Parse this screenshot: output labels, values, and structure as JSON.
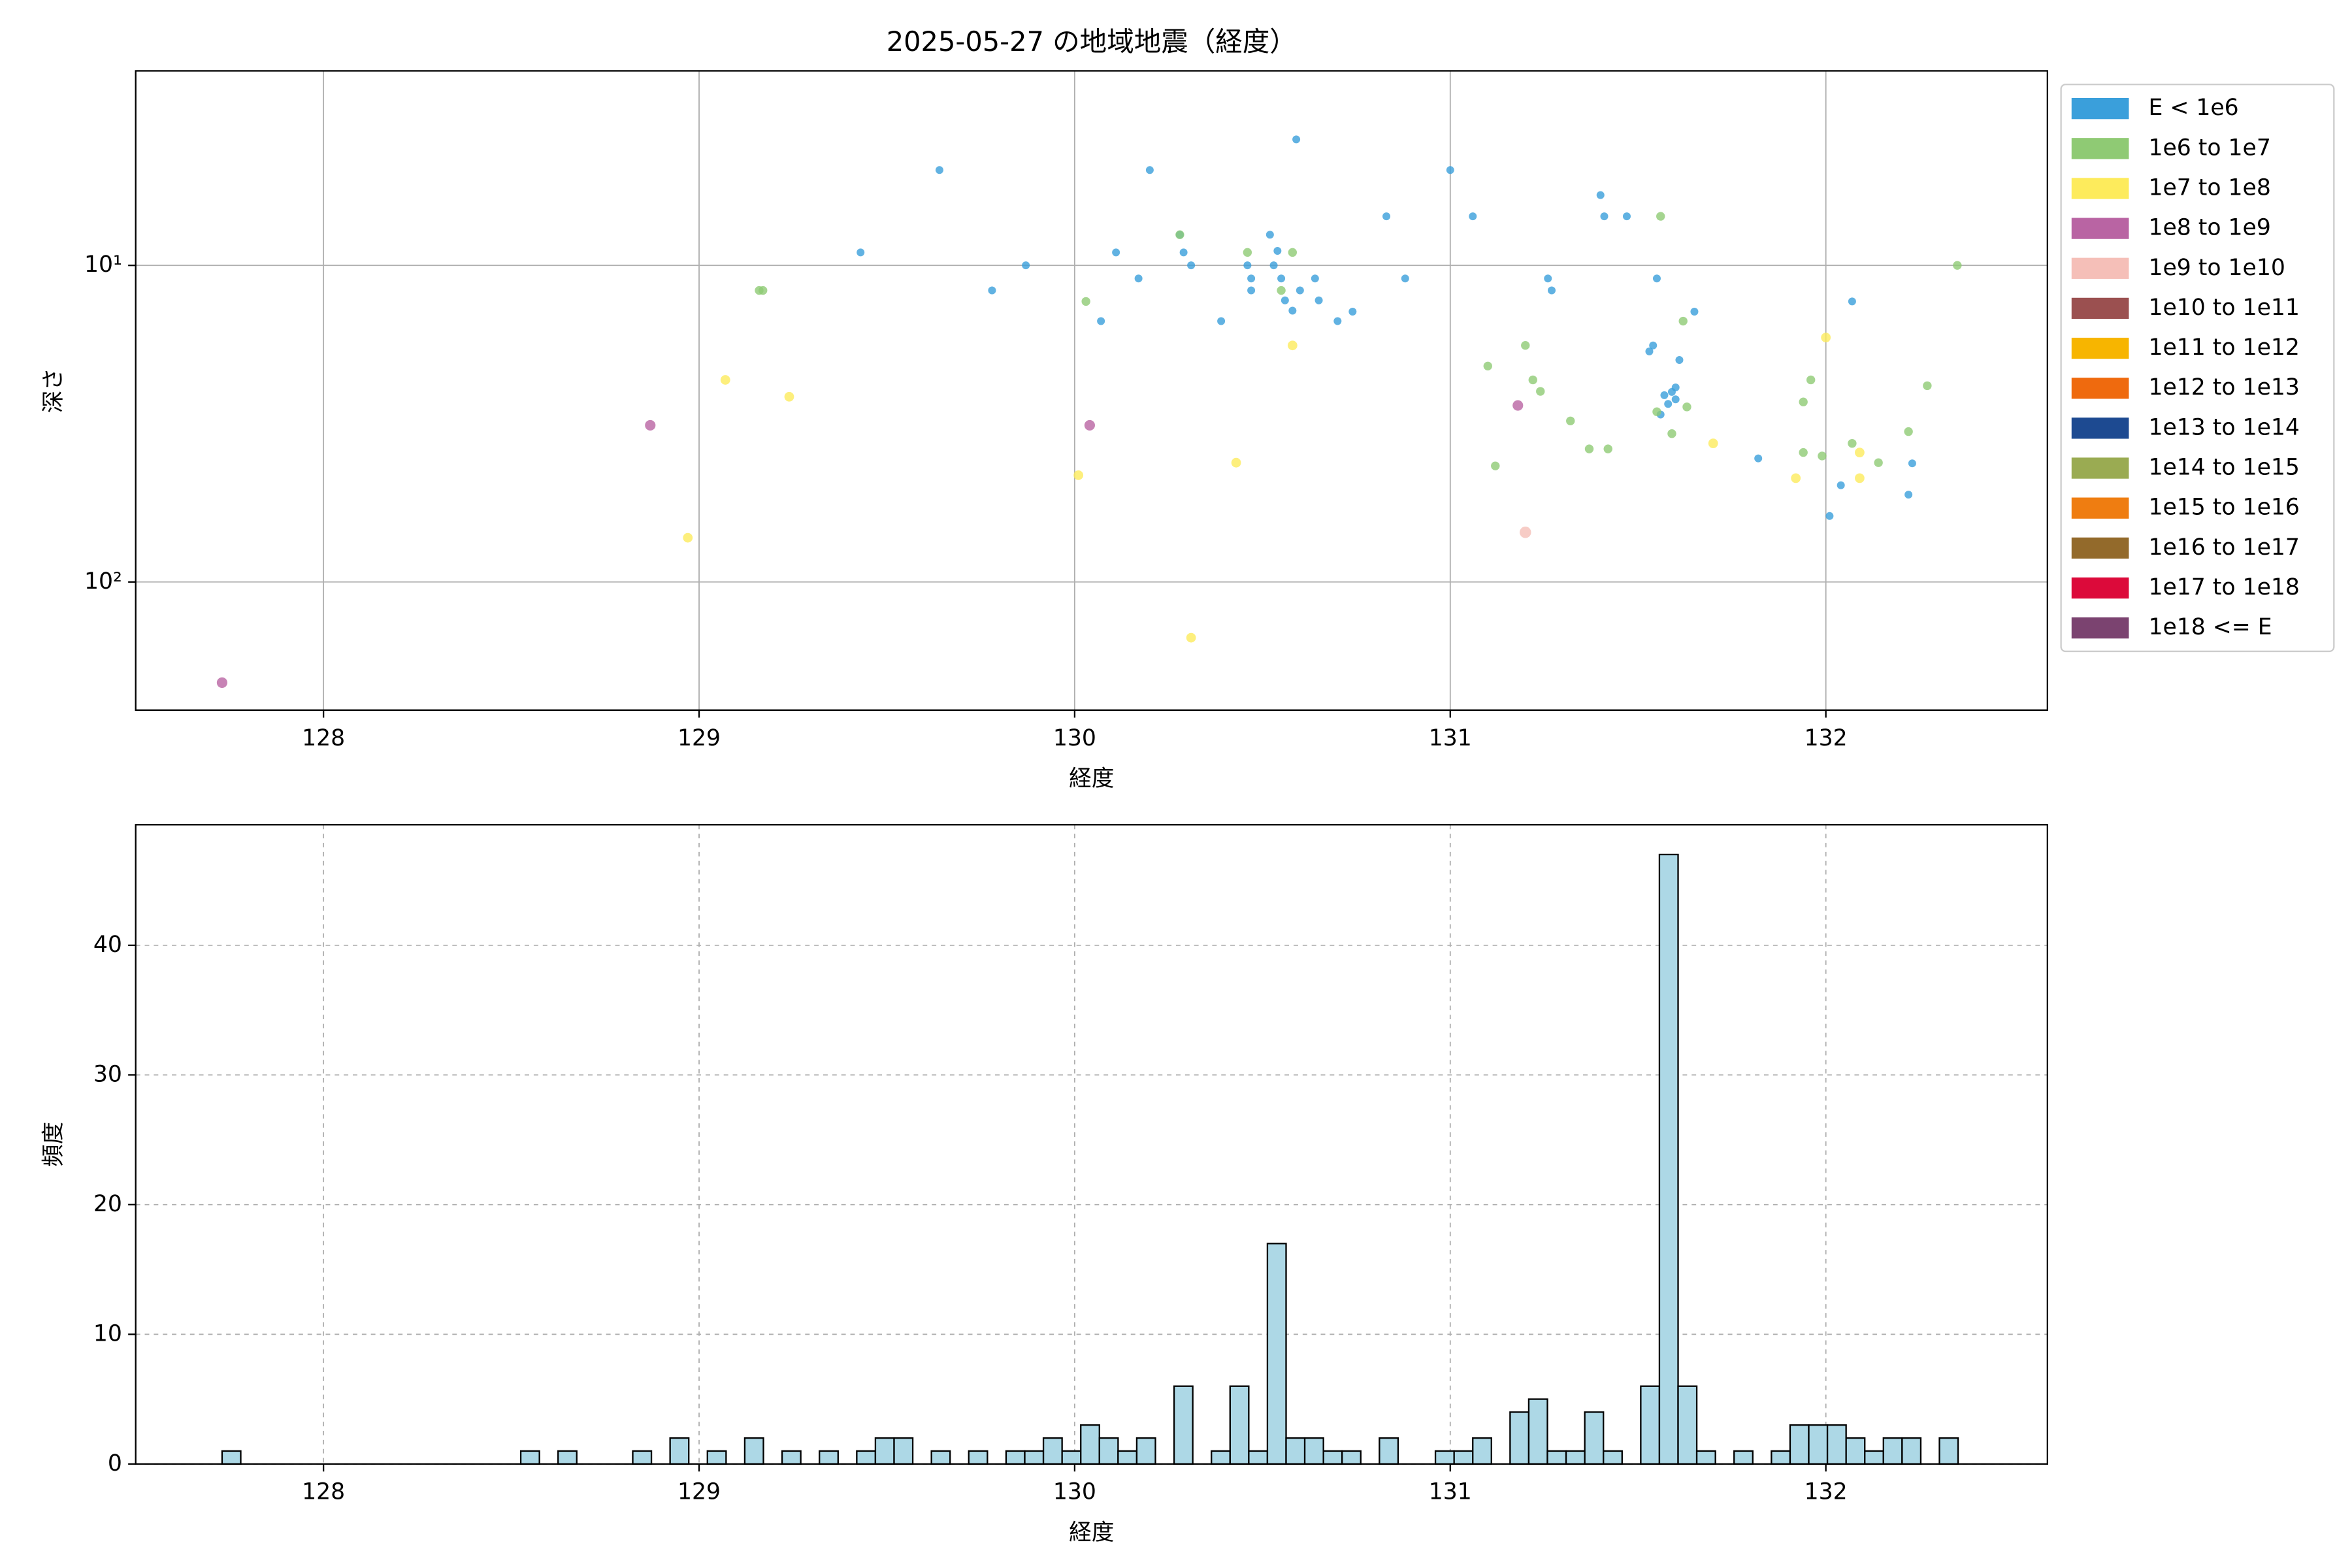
{
  "chart_data": [
    {
      "type": "scatter",
      "title": "2025-05-27 の地域地震（経度）",
      "x_label": "経度",
      "y_label": "深さ",
      "xlim": [
        127.5,
        132.59
      ],
      "xticks": [
        128,
        129,
        130,
        131,
        132
      ],
      "ylim": [
        254,
        2.43
      ],
      "yscale": "log",
      "yticks": [
        {
          "value": 10,
          "label": "10¹"
        },
        {
          "value": 100,
          "label": "10²"
        }
      ],
      "grid": true,
      "legend": "outside right",
      "series": [
        {
          "name": "E < 1e6",
          "color": "#3a9fdb",
          "x": [
            129.64,
            129.43,
            129.78,
            129.87,
            130.11,
            130.17,
            130.2,
            130.29,
            130.31,
            130.28,
            130.39,
            130.46,
            130.47,
            130.47,
            130.52,
            130.53,
            130.54,
            130.55,
            130.56,
            130.58,
            130.59,
            130.6,
            130.64,
            130.65,
            130.7,
            130.74,
            130.83,
            130.88,
            130.07,
            131,
            131.06,
            131.26,
            131.27,
            131.4,
            131.41,
            131.47,
            131.55,
            131.53,
            131.54,
            131.61,
            131.59,
            131.6,
            131.57,
            131.6,
            131.58,
            131.56,
            131.65,
            131.82,
            132.07,
            132.04,
            132.01,
            132.22,
            132.23
          ],
          "values": [
            5,
            9.1,
            12,
            10,
            9.1,
            11,
            5,
            9.1,
            10,
            8,
            15,
            10,
            11,
            12,
            8,
            10,
            9,
            11,
            12.9,
            13.9,
            4,
            12,
            11,
            12.9,
            15,
            14,
            7,
            11,
            15,
            5,
            7,
            11,
            12,
            6,
            7,
            7,
            11,
            18.7,
            17.9,
            19.9,
            25.1,
            26.5,
            25.7,
            24.3,
            27.4,
            29.6,
            14,
            40.7,
            13,
            49.5,
            61.9,
            53,
            42.2
          ]
        },
        {
          "name": "1e6 to 1e7",
          "color": "#8fca74",
          "x": [
            129.16,
            129.17,
            130.03,
            130.28,
            130.46,
            130.58,
            130.55,
            131.1,
            131.2,
            131.22,
            131.24,
            131.32,
            131.37,
            131.42,
            131.12,
            131.56,
            131.62,
            131.55,
            131.59,
            131.63,
            131.94,
            131.96,
            131.94,
            131.99,
            132.07,
            132.14,
            132.22,
            132.27,
            132.35
          ],
          "values": [
            12,
            12,
            13,
            8,
            9.1,
            9.1,
            12,
            20.8,
            17.9,
            23,
            25,
            31,
            38,
            38,
            43,
            7,
            15,
            29,
            34,
            28,
            27,
            23,
            39,
            40,
            36.5,
            42,
            33.5,
            24,
            10
          ]
        },
        {
          "name": "1e7 to 1e8",
          "color": "#fdeb5c",
          "x": [
            129.07,
            129.24,
            128.97,
            130.01,
            130.43,
            130.58,
            130.31,
            131.7,
            132,
            132.09,
            131.92,
            132.09
          ],
          "values": [
            23,
            26,
            72.5,
            46,
            42,
            17.9,
            150,
            36.5,
            16.9,
            39,
            47,
            47
          ]
        },
        {
          "name": "1e8 to 1e9",
          "color": "#b964a3",
          "x": [
            127.73,
            128.87,
            130.04,
            131.18
          ],
          "values": [
            208,
            32,
            32,
            27.7
          ]
        },
        {
          "name": "1e9 to 1e10",
          "color": "#f5bfb8",
          "x": [
            131.2
          ],
          "values": [
            69.7
          ]
        },
        {
          "name": "1e10 to 1e11",
          "color": "#9b5050",
          "x": [],
          "values": []
        },
        {
          "name": "1e11 to 1e12",
          "color": "#f7b500",
          "x": [],
          "values": []
        },
        {
          "name": "1e12 to 1e13",
          "color": "#ef6a0e",
          "x": [],
          "values": []
        },
        {
          "name": "1e13 to 1e14",
          "color": "#1d4a91",
          "x": [],
          "values": []
        },
        {
          "name": "1e14 to 1e15",
          "color": "#9aab52",
          "x": [],
          "values": []
        },
        {
          "name": "1e15 to 1e16",
          "color": "#ef7d11",
          "x": [],
          "values": []
        },
        {
          "name": "1e16 to 1e17",
          "color": "#936a2b",
          "x": [],
          "values": []
        },
        {
          "name": "1e17 to 1e18",
          "color": "#dc0a3a",
          "x": [],
          "values": []
        },
        {
          "name": "1e18 <= E",
          "color": "#7b4370",
          "x": [],
          "values": []
        }
      ]
    },
    {
      "type": "histogram",
      "x_label": "経度",
      "y_label": "頻度",
      "color": "#add8e6",
      "edgecolor": "#000000",
      "xlim": [
        127.5,
        132.59
      ],
      "xticks": [
        128,
        129,
        130,
        131,
        132
      ],
      "ylim": [
        0,
        49.3
      ],
      "yticks": [
        0,
        10,
        20,
        30,
        40
      ],
      "grid": true,
      "grid_linestyle": "dashed",
      "bins": [
        127.73,
        127.7797,
        127.8294,
        127.8791,
        127.9288,
        127.9785,
        128.0282,
        128.0779,
        128.1276,
        128.1773,
        128.227,
        128.2767,
        128.3264,
        128.3761,
        128.4258,
        128.4755,
        128.5252,
        128.5749,
        128.6246,
        128.6743,
        128.724,
        128.7737,
        128.8234,
        128.8731,
        128.9228,
        128.9725,
        129.0222,
        129.0719,
        129.1216,
        129.1713,
        129.221,
        129.2707,
        129.3204,
        129.3701,
        129.4198,
        129.4695,
        129.5192,
        129.5689,
        129.6186,
        129.6683,
        129.718,
        129.7677,
        129.8174,
        129.8671,
        129.9168,
        129.9665,
        130.0162,
        130.0659,
        130.1156,
        130.1653,
        130.215,
        130.2647,
        130.3144,
        130.3641,
        130.4138,
        130.4635,
        130.5132,
        130.5629,
        130.6126,
        130.6623,
        130.712,
        130.7617,
        130.8114,
        130.8611,
        130.9108,
        130.9605,
        131.0102,
        131.0599,
        131.1096,
        131.1593,
        131.209,
        131.2587,
        131.3084,
        131.3581,
        131.4078,
        131.4575,
        131.5072,
        131.5569,
        131.6066,
        131.6563,
        131.706,
        131.7557,
        131.8054,
        131.8551,
        131.9048,
        131.9545,
        132.0042,
        132.0539,
        132.1036,
        132.1533,
        132.203,
        132.2527,
        132.3024,
        132.3521
      ],
      "values": [
        1,
        0,
        0,
        0,
        0,
        0,
        0,
        0,
        0,
        0,
        0,
        0,
        0,
        0,
        0,
        0,
        1,
        0,
        1,
        0,
        0,
        0,
        1,
        0,
        2,
        0,
        1,
        0,
        2,
        0,
        1,
        0,
        1,
        0,
        1,
        2,
        2,
        0,
        1,
        0,
        1,
        0,
        1,
        1,
        2,
        1,
        3,
        2,
        1,
        2,
        0,
        6,
        0,
        1,
        6,
        1,
        17,
        2,
        2,
        1,
        1,
        0,
        2,
        0,
        0,
        1,
        1,
        2,
        0,
        4,
        5,
        1,
        1,
        4,
        1,
        0,
        6,
        47,
        6,
        1,
        0,
        1,
        0,
        1,
        3,
        3,
        3,
        2,
        1,
        2,
        2,
        0,
        2
      ]
    }
  ]
}
